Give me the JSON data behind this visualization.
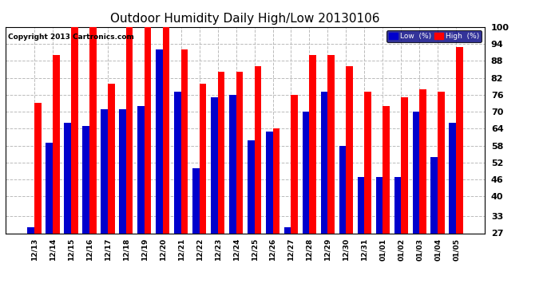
{
  "title": "Outdoor Humidity Daily High/Low 20130106",
  "copyright": "Copyright 2013 Cartronics.com",
  "dates": [
    "12/13",
    "12/14",
    "12/15",
    "12/16",
    "12/17",
    "12/18",
    "12/19",
    "12/20",
    "12/21",
    "12/22",
    "12/23",
    "12/24",
    "12/25",
    "12/26",
    "12/27",
    "12/28",
    "12/29",
    "12/30",
    "12/31",
    "01/01",
    "01/02",
    "01/03",
    "01/04",
    "01/05"
  ],
  "high": [
    73,
    90,
    100,
    100,
    80,
    100,
    100,
    100,
    92,
    80,
    84,
    84,
    86,
    64,
    76,
    90,
    90,
    86,
    77,
    72,
    75,
    78,
    77,
    93
  ],
  "low": [
    29,
    59,
    66,
    65,
    71,
    71,
    72,
    92,
    77,
    50,
    75,
    76,
    60,
    63,
    29,
    70,
    77,
    58,
    47,
    47,
    47,
    70,
    54,
    66
  ],
  "high_color": "#ff0000",
  "low_color": "#0000cc",
  "bg_color": "#ffffff",
  "grid_color": "#bbbbbb",
  "title_fontsize": 11,
  "ylabel_ticks": [
    27,
    33,
    40,
    46,
    52,
    58,
    64,
    70,
    76,
    82,
    88,
    94,
    100
  ],
  "ymin": 27,
  "ymax": 100
}
